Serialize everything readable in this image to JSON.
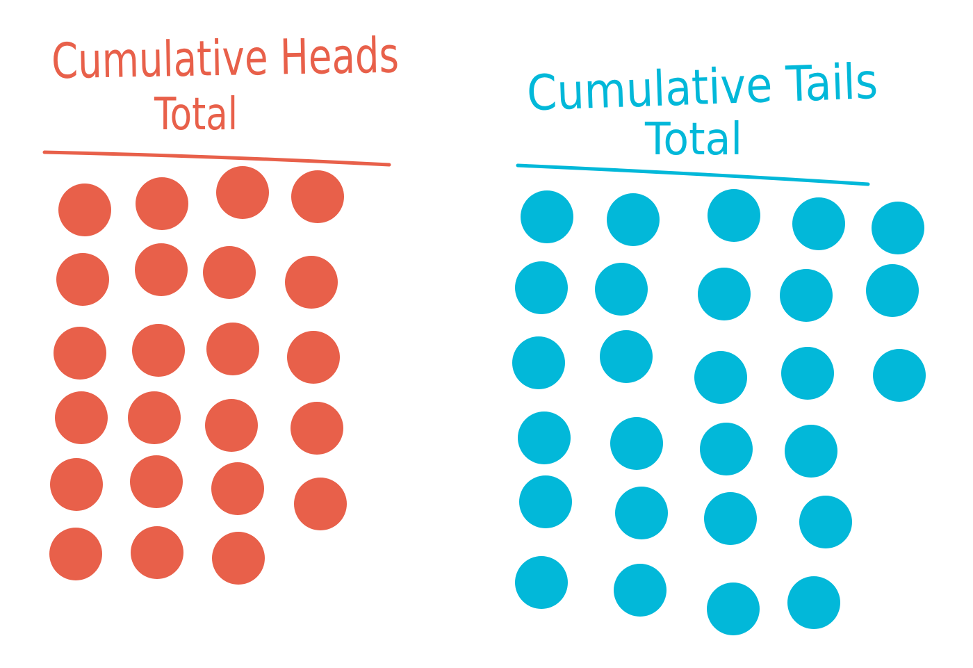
{
  "colors": {
    "heads": "#E8604A",
    "tails": "#02B8D9",
    "background": "#FFFFFF"
  },
  "heads_panel": {
    "title_line1": "Cumulative Heads",
    "title_line2": "Total",
    "dot_rows": [
      4,
      4,
      4,
      4,
      4,
      3
    ],
    "count": 23
  },
  "tails_panel": {
    "title_line1": "Cumulative Tails",
    "title_line2": "Total",
    "dot_rows": [
      5,
      5,
      5,
      4,
      4,
      4
    ],
    "count": 27
  }
}
